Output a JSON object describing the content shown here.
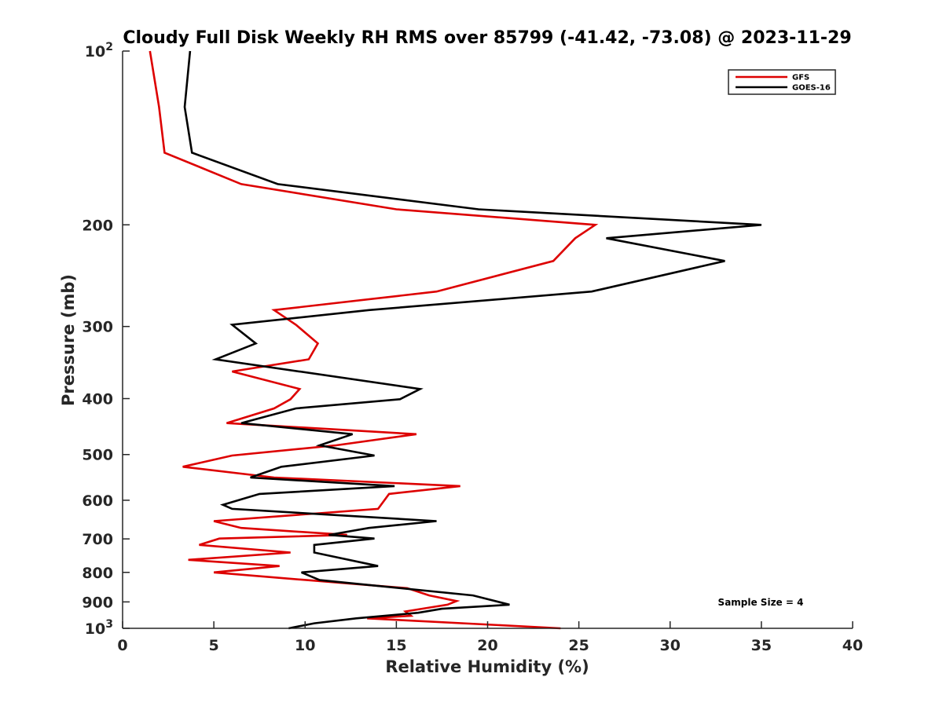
{
  "chart_data": {
    "type": "line",
    "title": "Cloudy Full Disk Weekly RH RMS over 85799 (-41.42, -73.08) @ 2023-11-29",
    "xlabel": "Relative Humidity (%)",
    "ylabel": "Pressure (mb)",
    "xlim": [
      0,
      40
    ],
    "ylim": [
      1000,
      100
    ],
    "y_scale": "log",
    "y_reversed": true,
    "grid": false,
    "legend_position": "top-right",
    "x_ticks": [
      0,
      5,
      10,
      15,
      20,
      25,
      30,
      35,
      40
    ],
    "x_tick_labels": [
      "0",
      "5",
      "10",
      "15",
      "20",
      "25",
      "30",
      "35",
      "40"
    ],
    "y_ticks": [
      100,
      200,
      300,
      400,
      500,
      600,
      700,
      800,
      900,
      1000
    ],
    "y_tick_labels": [
      {
        "base": "10",
        "exp": "2"
      },
      {
        "text": "200"
      },
      {
        "text": "300"
      },
      {
        "text": "400"
      },
      {
        "text": "500"
      },
      {
        "text": "600"
      },
      {
        "text": "700"
      },
      {
        "text": "800"
      },
      {
        "text": "900"
      },
      {
        "base": "10",
        "exp": "3"
      }
    ],
    "series": [
      {
        "name": "GFS",
        "color": "#dd0000",
        "points": [
          [
            1.5,
            100
          ],
          [
            2.0,
            125
          ],
          [
            2.3,
            150
          ],
          [
            6.5,
            170
          ],
          [
            15.0,
            188
          ],
          [
            25.9,
            200
          ],
          [
            24.8,
            211
          ],
          [
            23.6,
            231
          ],
          [
            17.2,
            261
          ],
          [
            8.3,
            281
          ],
          [
            9.5,
            298
          ],
          [
            10.7,
            321
          ],
          [
            10.2,
            342
          ],
          [
            6.0,
            359
          ],
          [
            9.7,
            385
          ],
          [
            9.2,
            401
          ],
          [
            8.3,
            416
          ],
          [
            5.7,
            441
          ],
          [
            16.1,
            461
          ],
          [
            11.7,
            482
          ],
          [
            6.0,
            502
          ],
          [
            3.3,
            525
          ],
          [
            8.3,
            548
          ],
          [
            18.5,
            567
          ],
          [
            14.6,
            585
          ],
          [
            14.0,
            621
          ],
          [
            5.0,
            652
          ],
          [
            6.5,
            670
          ],
          [
            12.3,
            689
          ],
          [
            5.3,
            699
          ],
          [
            4.2,
            717
          ],
          [
            9.2,
            739
          ],
          [
            3.6,
            761
          ],
          [
            8.6,
            780
          ],
          [
            5.0,
            800
          ],
          [
            10.1,
            825
          ],
          [
            15.6,
            852
          ],
          [
            16.8,
            877
          ],
          [
            18.3,
            897
          ],
          [
            17.8,
            910
          ],
          [
            15.5,
            935
          ],
          [
            15.8,
            951
          ],
          [
            13.4,
            961
          ],
          [
            24.0,
            1000
          ]
        ]
      },
      {
        "name": "GOES-16",
        "color": "#000000",
        "points": [
          [
            3.7,
            100
          ],
          [
            3.4,
            125
          ],
          [
            3.8,
            150
          ],
          [
            8.5,
            170
          ],
          [
            19.5,
            188
          ],
          [
            35.0,
            200
          ],
          [
            26.5,
            211
          ],
          [
            33.0,
            231
          ],
          [
            25.7,
            261
          ],
          [
            13.5,
            281
          ],
          [
            6.0,
            298
          ],
          [
            7.3,
            321
          ],
          [
            5.1,
            342
          ],
          [
            16.3,
            385
          ],
          [
            15.2,
            401
          ],
          [
            9.5,
            416
          ],
          [
            6.5,
            441
          ],
          [
            12.6,
            461
          ],
          [
            10.8,
            482
          ],
          [
            13.8,
            502
          ],
          [
            8.7,
            525
          ],
          [
            7.0,
            548
          ],
          [
            14.9,
            567
          ],
          [
            7.5,
            585
          ],
          [
            5.5,
            611
          ],
          [
            6.0,
            621
          ],
          [
            17.2,
            652
          ],
          [
            13.5,
            670
          ],
          [
            11.3,
            689
          ],
          [
            13.8,
            699
          ],
          [
            10.5,
            717
          ],
          [
            10.5,
            739
          ],
          [
            14.0,
            780
          ],
          [
            9.8,
            800
          ],
          [
            10.8,
            825
          ],
          [
            19.2,
            877
          ],
          [
            21.2,
            910
          ],
          [
            17.5,
            925
          ],
          [
            16.2,
            940
          ],
          [
            12.8,
            961
          ],
          [
            10.5,
            980
          ],
          [
            9.1,
            1000
          ]
        ]
      }
    ],
    "annotations": [
      {
        "text": "Sample Size = 4"
      }
    ]
  }
}
